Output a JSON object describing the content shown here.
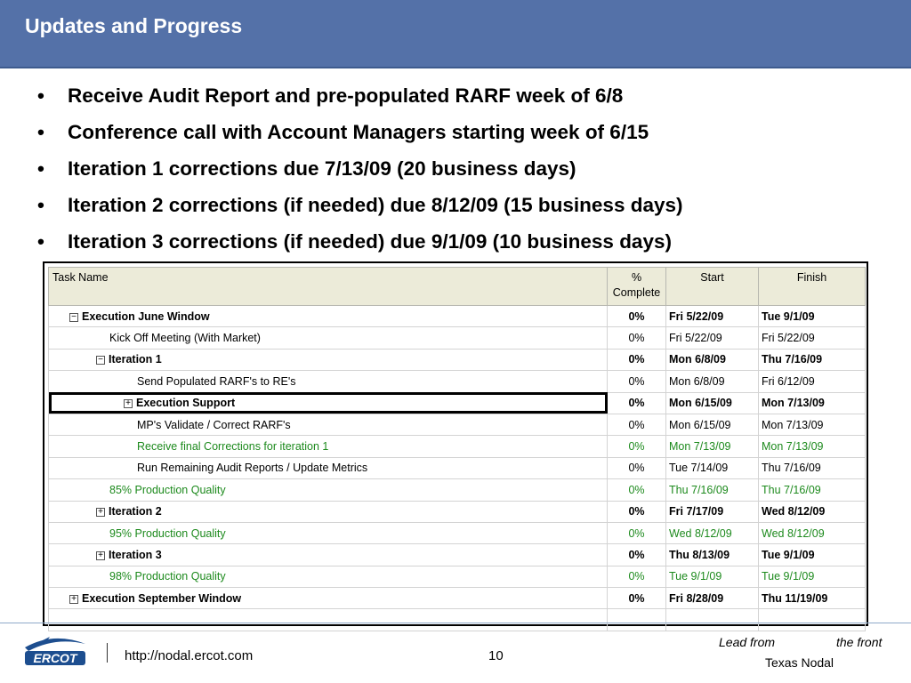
{
  "slide": {
    "title": "Updates and Progress"
  },
  "bullets": [
    "Receive Audit Report and pre-populated RARF week of 6/8",
    "Conference call with Account Managers starting week of 6/15",
    "Iteration 1 corrections due 7/13/09 (20 business days)",
    "Iteration 2 corrections (if needed) due 8/12/09 (15 business days)",
    "Iteration 3 corrections (if needed) due 9/1/09 (10 business days)"
  ],
  "gantt": {
    "headers": {
      "name": "Task Name",
      "pct_line1": "%",
      "pct_line2": "Complete",
      "start": "Start",
      "finish": "Finish"
    },
    "rows": [
      {
        "name": "Execution June Window",
        "pct": "0%",
        "start": "Fri 5/22/09",
        "finish": "Tue 9/1/09",
        "level": 1,
        "kind": "summary",
        "toggle": "−"
      },
      {
        "name": "Kick Off Meeting (With Market)",
        "pct": "0%",
        "start": "Fri 5/22/09",
        "finish": "Fri 5/22/09",
        "level": 2,
        "kind": "task",
        "toggle": ""
      },
      {
        "name": "Iteration 1",
        "pct": "0%",
        "start": "Mon 6/8/09",
        "finish": "Thu 7/16/09",
        "level": 2,
        "kind": "summary",
        "toggle": "−"
      },
      {
        "name": "Send Populated RARF's to RE's",
        "pct": "0%",
        "start": "Mon 6/8/09",
        "finish": "Fri 6/12/09",
        "level": 3,
        "kind": "task",
        "toggle": ""
      },
      {
        "name": "Execution Support",
        "pct": "0%",
        "start": "Mon 6/15/09",
        "finish": "Mon 7/13/09",
        "level": 3,
        "kind": "summary",
        "toggle": "+",
        "selected": true
      },
      {
        "name": "MP's Validate / Correct RARF's",
        "pct": "0%",
        "start": "Mon 6/15/09",
        "finish": "Mon 7/13/09",
        "level": 3,
        "kind": "task",
        "toggle": ""
      },
      {
        "name": "Receive final Corrections for iteration 1",
        "pct": "0%",
        "start": "Mon 7/13/09",
        "finish": "Mon 7/13/09",
        "level": 3,
        "kind": "milestone",
        "toggle": ""
      },
      {
        "name": "Run Remaining Audit Reports / Update Metrics",
        "pct": "0%",
        "start": "Tue 7/14/09",
        "finish": "Thu 7/16/09",
        "level": 3,
        "kind": "task",
        "toggle": ""
      },
      {
        "name": "85% Production Quality",
        "pct": "0%",
        "start": "Thu 7/16/09",
        "finish": "Thu 7/16/09",
        "level": 2,
        "kind": "milestone",
        "toggle": ""
      },
      {
        "name": "Iteration 2",
        "pct": "0%",
        "start": "Fri 7/17/09",
        "finish": "Wed 8/12/09",
        "level": 2,
        "kind": "summary",
        "toggle": "+"
      },
      {
        "name": "95% Production Quality",
        "pct": "0%",
        "start": "Wed 8/12/09",
        "finish": "Wed 8/12/09",
        "level": 2,
        "kind": "milestone",
        "toggle": ""
      },
      {
        "name": "Iteration 3",
        "pct": "0%",
        "start": "Thu 8/13/09",
        "finish": "Tue 9/1/09",
        "level": 2,
        "kind": "summary",
        "toggle": "+"
      },
      {
        "name": "98% Production Quality",
        "pct": "0%",
        "start": "Tue 9/1/09",
        "finish": "Tue 9/1/09",
        "level": 2,
        "kind": "milestone",
        "toggle": ""
      },
      {
        "name": "Execution September Window",
        "pct": "0%",
        "start": "Fri 8/28/09",
        "finish": "Thu 11/19/09",
        "level": 1,
        "kind": "summary",
        "toggle": "+"
      },
      {
        "name": "",
        "pct": "",
        "start": "",
        "finish": "",
        "level": 1,
        "kind": "empty",
        "toggle": ""
      }
    ]
  },
  "footer": {
    "logo_text": "ERCOT",
    "url": "http://nodal.ercot.com",
    "page_number": "10",
    "tagline_1": "Lead from",
    "tagline_2": "the front",
    "tagline_3": "Texas Nodal"
  },
  "colors": {
    "title_bar": "#5471a8",
    "milestone_text": "#1d8a1d",
    "header_bg": "#ecebd9"
  },
  "icons": {
    "logo": "ercot-logo",
    "collapse": "minus-box-icon",
    "expand": "plus-box-icon"
  }
}
